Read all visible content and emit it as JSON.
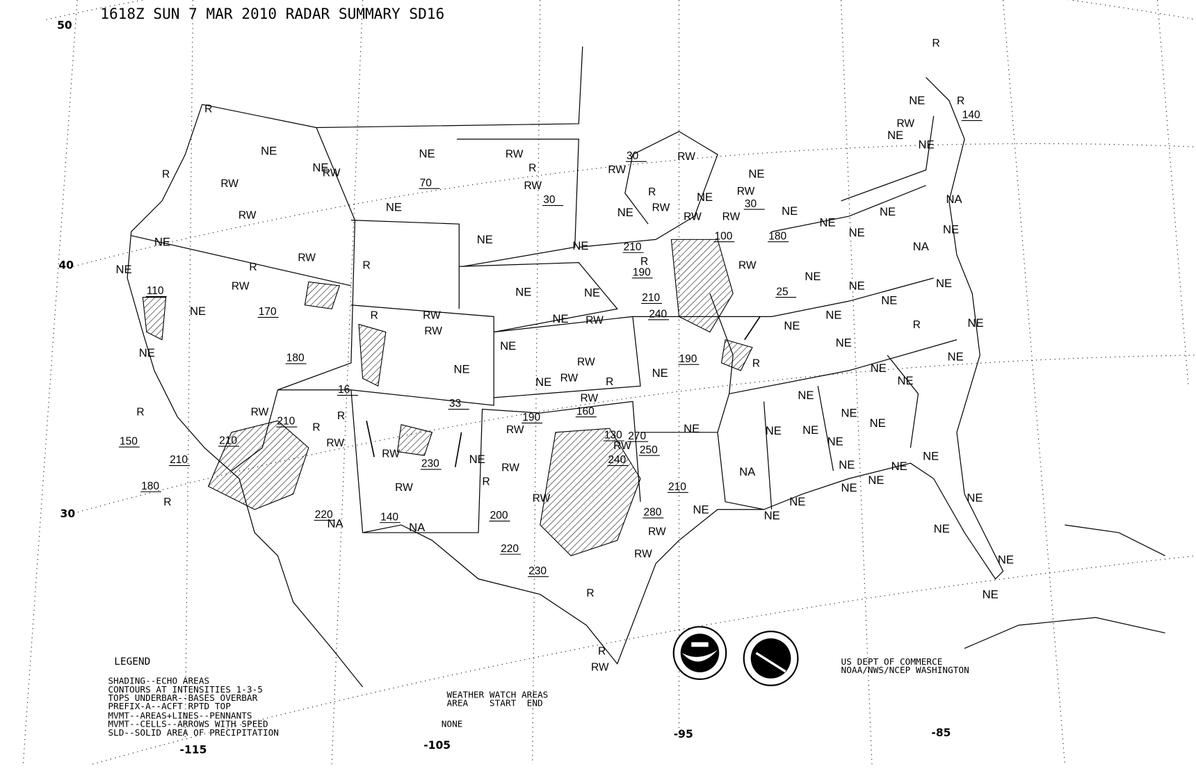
{
  "title": "1618Z SUN  7 MAR 2010 RADAR SUMMARY SD16",
  "latitude_labels": [
    "50",
    "40",
    "30"
  ],
  "longitude_labels": [
    "-115",
    "-105",
    "-95",
    "-85"
  ],
  "legend": {
    "heading": "LEGEND",
    "lines": [
      "SHADING--ECHO AREAS",
      "CONTOURS AT INTENSITIES 1-3-5",
      "TOPS UNDERBAR--BASES OVERBAR",
      "PREFIX-A--ACFT RPTD TOP",
      "MVMT--AREAS+LINES--PENNANTS",
      "MVMT--CELLS--ARROWS WITH SPEED",
      "SLD--SOLID AREA OF PRECIPITATION"
    ]
  },
  "watch": {
    "heading": "WEATHER WATCH AREAS",
    "columns": "AREA    START  END",
    "value": "NONE"
  },
  "credit": [
    "US DEPT OF COMMERCE",
    "NOAA/NWS/NCEP WASHINGTON"
  ],
  "logos": [
    "NOAA seal",
    "National Weather Service seal"
  ],
  "echo_codes": {
    "NE": "NE",
    "NA": "NA",
    "R": "R",
    "RW": "RW"
  },
  "echo_tops": [
    "70",
    "30",
    "30",
    "210",
    "190",
    "210",
    "240",
    "190",
    "100",
    "180",
    "30",
    "25",
    "140",
    "110",
    "170",
    "180",
    "16",
    "33",
    "210",
    "210",
    "150",
    "210",
    "180",
    "220",
    "140",
    "230",
    "190",
    "160",
    "130",
    "270",
    "250",
    "240",
    "280",
    "210",
    "200",
    "220",
    "230"
  ]
}
